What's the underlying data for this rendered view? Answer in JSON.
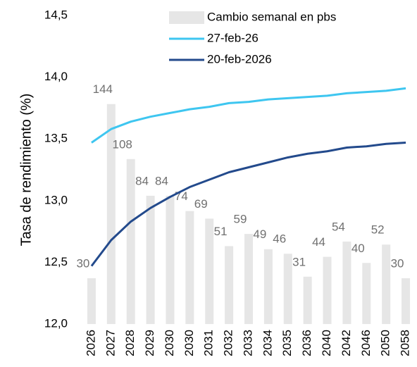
{
  "chart_data": {
    "type": "bar_line",
    "y_label": "Tasa de rendimiento (%)",
    "categories": [
      "2026",
      "2027",
      "2028",
      "2029",
      "2030",
      "2030",
      "2031",
      "2032",
      "2033",
      "2034",
      "2035",
      "2036",
      "2040",
      "2042",
      "2046",
      "2050",
      "2058"
    ],
    "series": [
      {
        "name": "Cambio semanal en pbs",
        "type": "bar",
        "axis": "y2",
        "color": "#e6e6e6",
        "values": [
          30,
          144,
          108,
          84,
          84,
          74,
          69,
          51,
          59,
          49,
          46,
          31,
          44,
          54,
          40,
          52,
          30
        ]
      },
      {
        "name": "27-feb-26",
        "type": "line",
        "color": "#3ec6f0",
        "values": [
          13.47,
          13.58,
          13.64,
          13.68,
          13.71,
          13.74,
          13.76,
          13.79,
          13.8,
          13.82,
          13.83,
          13.84,
          13.85,
          13.87,
          13.88,
          13.89,
          13.91
        ]
      },
      {
        "name": "20-feb-2026",
        "type": "line",
        "color": "#234a8c",
        "values": [
          12.47,
          12.68,
          12.83,
          12.94,
          13.03,
          13.11,
          13.17,
          13.23,
          13.27,
          13.31,
          13.35,
          13.38,
          13.4,
          13.43,
          13.44,
          13.46,
          13.47
        ]
      }
    ],
    "ylim": [
      12,
      14.5
    ],
    "yticks": [
      {
        "value": 12,
        "label": "12,0"
      },
      {
        "value": 12.5,
        "label": "12,5"
      },
      {
        "value": 13,
        "label": "13,0"
      },
      {
        "value": 13.5,
        "label": "13,5"
      },
      {
        "value": 14,
        "label": "14,0"
      },
      {
        "value": 14.5,
        "label": "14,5"
      }
    ],
    "y2lim": [
      0,
      202
    ]
  }
}
